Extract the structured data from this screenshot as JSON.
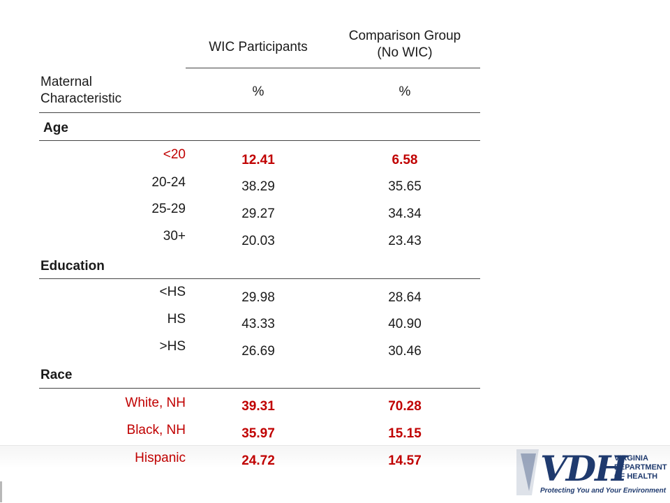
{
  "table": {
    "col_wic": "WIC Participants",
    "col_comparison_line1": "Comparison Group",
    "col_comparison_line2": "(No WIC)",
    "row_header_line1": "Maternal",
    "row_header_line2": "Characteristic",
    "pct_wic": "%",
    "pct_comparison": "%",
    "sections": {
      "age": "Age",
      "education": "Education",
      "race": "Race"
    },
    "rows": [
      {
        "label": "<20",
        "wic": "12.41",
        "comparison": "6.58",
        "highlight": true
      },
      {
        "label": "20-24",
        "wic": "38.29",
        "comparison": "35.65",
        "highlight": false
      },
      {
        "label": "25-29",
        "wic": "29.27",
        "comparison": "34.34",
        "highlight": false
      },
      {
        "label": "30+",
        "wic": "20.03",
        "comparison": "23.43",
        "highlight": false
      },
      {
        "label": "<HS",
        "wic": "29.98",
        "comparison": "28.64",
        "highlight": false
      },
      {
        "label": "HS",
        "wic": "43.33",
        "comparison": "40.90",
        "highlight": false
      },
      {
        "label": ">HS",
        "wic": "26.69",
        "comparison": "30.46",
        "highlight": false
      },
      {
        "label": "White, NH",
        "wic": "39.31",
        "comparison": "70.28",
        "highlight": true
      },
      {
        "label": "Black, NH",
        "wic": "35.97",
        "comparison": "15.15",
        "highlight": true
      },
      {
        "label": "Hispanic",
        "wic": "24.72",
        "comparison": "14.57",
        "highlight": true
      }
    ]
  },
  "logo": {
    "mark": "VDH",
    "name_line1": "VIRGINIA",
    "name_line2": "DEPARTMENT",
    "name_line3": "OF HEALTH",
    "tagline": "Protecting You and Your Environment"
  },
  "colors": {
    "highlight": "#c00000",
    "logo_blue": "#1f3a6e"
  }
}
